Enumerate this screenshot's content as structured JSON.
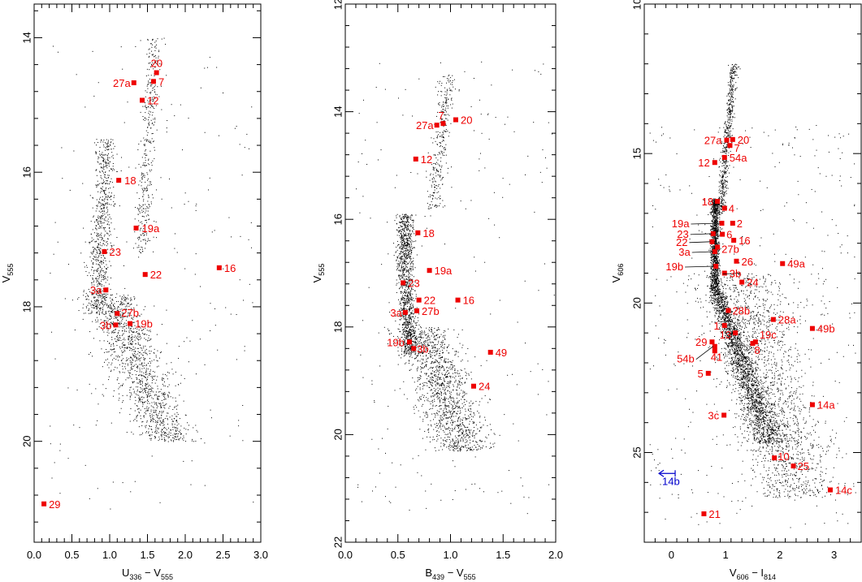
{
  "colors": {
    "stars": "#ee0000",
    "arrow": "#0000cc",
    "field": "#000000"
  },
  "chart_data": [
    {
      "type": "scatter",
      "xlabel": {
        "main": "U",
        "sub1": "336",
        "mid": " − V",
        "sub2": "555"
      },
      "ylabel": {
        "main": "V",
        "sub": "555"
      },
      "xlim": [
        0,
        3.0
      ],
      "ylim": [
        21.5,
        13.5
      ],
      "xticks": [
        0,
        0.5,
        1.0,
        1.5,
        2.0,
        2.5,
        3.0
      ],
      "xtick_labels": [
        "0.0",
        "0.5",
        "1.0",
        "1.5",
        "2.0",
        "2.5",
        "3.0"
      ],
      "yticks": [
        14,
        16,
        18,
        20
      ],
      "ytick_labels": [
        "14",
        "16",
        "18",
        "20"
      ],
      "labeled_stars": [
        {
          "label": "20",
          "x": 1.62,
          "y": 14.52
        },
        {
          "label": "27a",
          "x": 1.32,
          "y": 14.67
        },
        {
          "label": "7",
          "x": 1.58,
          "y": 14.65
        },
        {
          "label": "12",
          "x": 1.43,
          "y": 14.93
        },
        {
          "label": "18",
          "x": 1.12,
          "y": 16.12
        },
        {
          "label": "19a",
          "x": 1.35,
          "y": 16.83
        },
        {
          "label": "23",
          "x": 0.93,
          "y": 17.18
        },
        {
          "label": "22",
          "x": 1.47,
          "y": 17.52
        },
        {
          "label": "16",
          "x": 2.45,
          "y": 17.42
        },
        {
          "label": "3a",
          "x": 0.95,
          "y": 17.75
        },
        {
          "label": "27b",
          "x": 1.1,
          "y": 18.1
        },
        {
          "label": "3b",
          "x": 1.08,
          "y": 18.27
        },
        {
          "label": "19b",
          "x": 1.27,
          "y": 18.25
        },
        {
          "label": "29",
          "x": 0.13,
          "y": 20.93
        }
      ]
    },
    {
      "type": "scatter",
      "xlabel": {
        "main": "B",
        "sub1": "439",
        "mid": " − V",
        "sub2": "555"
      },
      "ylabel": {
        "main": "V",
        "sub": "555"
      },
      "xlim": [
        0,
        2.0
      ],
      "ylim": [
        22,
        12
      ],
      "xticks": [
        0,
        0.5,
        1.0,
        1.5,
        2.0
      ],
      "xtick_labels": [
        "0.0",
        "0.5",
        "1.0",
        "1.5",
        "2.0"
      ],
      "yticks": [
        12,
        14,
        16,
        18,
        20,
        22
      ],
      "ytick_labels": [
        "12",
        "14",
        "16",
        "18",
        "20",
        "22"
      ],
      "labeled_stars": [
        {
          "label": "7",
          "x": 0.93,
          "y": 14.22
        },
        {
          "label": "20",
          "x": 1.05,
          "y": 14.15
        },
        {
          "label": "27a",
          "x": 0.87,
          "y": 14.25
        },
        {
          "label": "12",
          "x": 0.67,
          "y": 14.88
        },
        {
          "label": "18",
          "x": 0.69,
          "y": 16.25
        },
        {
          "label": "19a",
          "x": 0.8,
          "y": 16.95
        },
        {
          "label": "23",
          "x": 0.55,
          "y": 17.18
        },
        {
          "label": "22",
          "x": 0.7,
          "y": 17.5
        },
        {
          "label": "16",
          "x": 1.07,
          "y": 17.5
        },
        {
          "label": "3a",
          "x": 0.57,
          "y": 17.73
        },
        {
          "label": "27b",
          "x": 0.68,
          "y": 17.7
        },
        {
          "label": "19b",
          "x": 0.61,
          "y": 18.28
        },
        {
          "label": "3b",
          "x": 0.65,
          "y": 18.4
        },
        {
          "label": "49",
          "x": 1.38,
          "y": 18.47
        },
        {
          "label": "24",
          "x": 1.22,
          "y": 19.1
        }
      ]
    },
    {
      "type": "scatter",
      "xlabel": {
        "main": "V",
        "sub1": "606",
        "mid": " − I",
        "sub2": "814"
      },
      "ylabel": {
        "main": "V",
        "sub": "606"
      },
      "xlim": [
        -0.5,
        3.5
      ],
      "ylim": [
        28,
        10
      ],
      "xticks": [
        0,
        1,
        2,
        3
      ],
      "xtick_labels": [
        "0",
        "1",
        "2",
        "3"
      ],
      "yticks": [
        10,
        15,
        20,
        25
      ],
      "ytick_labels": [
        "10",
        "15",
        "20",
        "25"
      ],
      "labeled_stars": [
        {
          "label": "27a",
          "x": 1.02,
          "y": 14.55
        },
        {
          "label": "20",
          "x": 1.13,
          "y": 14.53
        },
        {
          "label": "7",
          "x": 1.08,
          "y": 14.73
        },
        {
          "label": "12",
          "x": 0.8,
          "y": 15.3
        },
        {
          "label": "54a",
          "x": 0.98,
          "y": 15.13
        },
        {
          "label": "18",
          "x": 0.85,
          "y": 16.6
        },
        {
          "label": "4",
          "x": 0.98,
          "y": 16.83
        },
        {
          "label": "19a",
          "x": 0.93,
          "y": 17.33
        },
        {
          "label": "2",
          "x": 1.13,
          "y": 17.33
        },
        {
          "label": "23",
          "x": 0.77,
          "y": 17.68
        },
        {
          "label": "6",
          "x": 0.94,
          "y": 17.7
        },
        {
          "label": "16",
          "x": 1.15,
          "y": 17.9
        },
        {
          "label": "22",
          "x": 0.75,
          "y": 17.95
        },
        {
          "label": "27b",
          "x": 0.85,
          "y": 18.13
        },
        {
          "label": "3a",
          "x": 0.8,
          "y": 18.28
        },
        {
          "label": "26",
          "x": 1.2,
          "y": 18.6
        },
        {
          "label": "49a",
          "x": 2.05,
          "y": 18.68
        },
        {
          "label": "19b",
          "x": 0.82,
          "y": 18.77
        },
        {
          "label": "3b",
          "x": 0.98,
          "y": 19.0
        },
        {
          "label": "24",
          "x": 1.3,
          "y": 19.3
        },
        {
          "label": "28b",
          "x": 1.05,
          "y": 20.25
        },
        {
          "label": "28a",
          "x": 1.88,
          "y": 20.55
        },
        {
          "label": "49b",
          "x": 2.6,
          "y": 20.85
        },
        {
          "label": "1",
          "x": 0.98,
          "y": 20.75
        },
        {
          "label": "19c",
          "x": 1.55,
          "y": 21.3
        },
        {
          "label": "29",
          "x": 0.75,
          "y": 21.3
        },
        {
          "label": "13",
          "x": 1.18,
          "y": 21.0
        },
        {
          "label": "8",
          "x": 1.5,
          "y": 21.35
        },
        {
          "label": "54b",
          "x": 0.8,
          "y": 21.45
        },
        {
          "label": "41",
          "x": 0.8,
          "y": 21.6
        },
        {
          "label": "5",
          "x": 0.68,
          "y": 22.35
        },
        {
          "label": "14a",
          "x": 2.6,
          "y": 23.4
        },
        {
          "label": "3c",
          "x": 0.97,
          "y": 23.75
        },
        {
          "label": "10",
          "x": 1.9,
          "y": 25.18
        },
        {
          "label": "25",
          "x": 2.25,
          "y": 25.45
        },
        {
          "label": "14c",
          "x": 2.93,
          "y": 26.25
        },
        {
          "label": "21",
          "x": 0.6,
          "y": 27.05
        }
      ],
      "upper_limit": {
        "label": "14b",
        "x": -0.05,
        "y": 25.7
      }
    }
  ]
}
